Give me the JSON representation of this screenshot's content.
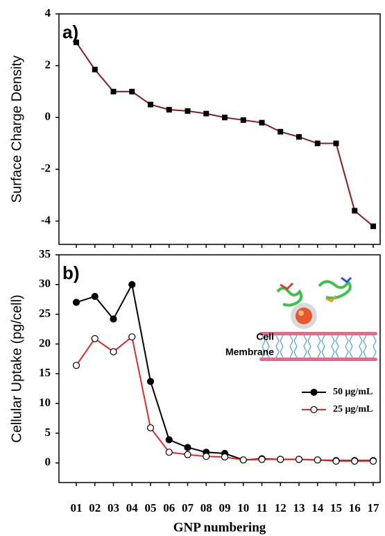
{
  "chart_data": [
    {
      "type": "line",
      "panel_label": "a)",
      "y_label": "Surface Charge Density",
      "ylim": [
        -4.9,
        4
      ],
      "yticks": [
        -4,
        -2,
        0,
        2,
        4
      ],
      "series": [
        {
          "color": "#8b1a1a",
          "marker": "square",
          "marker_fill": "#000000",
          "values": [
            2.9,
            1.85,
            1.0,
            1.0,
            0.5,
            0.3,
            0.25,
            0.15,
            0.0,
            -0.1,
            -0.2,
            -0.55,
            -0.75,
            -1.0,
            -1.0,
            -3.6,
            -4.2
          ]
        }
      ]
    },
    {
      "type": "line",
      "panel_label": "b)",
      "y_label": "Cellular Uptake (pg/cell)",
      "x_label": "GNP numbering",
      "categories": [
        "01",
        "02",
        "03",
        "04",
        "05",
        "06",
        "07",
        "08",
        "09",
        "10",
        "11",
        "12",
        "13",
        "14",
        "15",
        "16",
        "17"
      ],
      "ylim": [
        -3.3,
        35
      ],
      "yticks": [
        0,
        5,
        10,
        15,
        20,
        25,
        30,
        35
      ],
      "legend": "right",
      "annotation": [
        "Cell",
        "Membrane"
      ],
      "series": [
        {
          "name": "50 μg/mL",
          "color": "#000000",
          "marker": "circle",
          "marker_fill": "#000000",
          "values": [
            27,
            28,
            24.2,
            30,
            13.7,
            3.9,
            2.6,
            1.8,
            1.6,
            0.5,
            0.7,
            0.6,
            0.6,
            0.5,
            0.4,
            0.4,
            0.4
          ]
        },
        {
          "name": "25 μg/mL",
          "color": "#e8262a",
          "marker": "circle",
          "marker_fill": "#ffffff",
          "values": [
            16.4,
            20.9,
            18.7,
            21.2,
            5.9,
            1.8,
            1.4,
            1.1,
            1.0,
            0.5,
            0.6,
            0.6,
            0.6,
            0.5,
            0.3,
            0.3,
            0.3
          ]
        }
      ]
    }
  ]
}
